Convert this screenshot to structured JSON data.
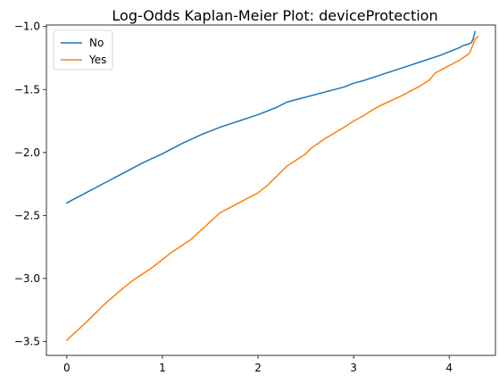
{
  "chart_data": {
    "type": "line",
    "title": "Log-Odds Kaplan-Meier Plot: deviceProtection",
    "xlabel": "",
    "ylabel": "",
    "xlim": [
      -0.2135,
      4.4835
    ],
    "ylim": [
      -3.6109,
      -0.9877
    ],
    "x_ticks": [
      0,
      1,
      2,
      3,
      4
    ],
    "x_tick_labels": [
      "0",
      "1",
      "2",
      "3",
      "4"
    ],
    "y_ticks": [
      -3.5,
      -3.0,
      -2.5,
      -2.0,
      -1.5,
      -1.0
    ],
    "y_tick_labels": [
      "−3.5",
      "−3.0",
      "−2.5",
      "−2.0",
      "−1.5",
      "−1.0"
    ],
    "grid": false,
    "legend": {
      "position": "top-left",
      "entries": [
        "No",
        "Yes"
      ]
    },
    "series": [
      {
        "name": "No",
        "color": "#1f77b4",
        "x": [
          0.0,
          0.2,
          0.4,
          0.6,
          0.8,
          1.0,
          1.2,
          1.4,
          1.6,
          1.8,
          2.0,
          2.2,
          2.3,
          2.5,
          2.7,
          2.9,
          3.0,
          3.1,
          3.3,
          3.5,
          3.7,
          3.9,
          4.0,
          4.1,
          4.15,
          4.2,
          4.23,
          4.25,
          4.27
        ],
        "y": [
          -2.4,
          -2.32,
          -2.24,
          -2.16,
          -2.08,
          -2.01,
          -1.93,
          -1.86,
          -1.8,
          -1.75,
          -1.7,
          -1.64,
          -1.6,
          -1.56,
          -1.52,
          -1.48,
          -1.45,
          -1.43,
          -1.38,
          -1.33,
          -1.28,
          -1.23,
          -1.2,
          -1.17,
          -1.15,
          -1.14,
          -1.13,
          -1.1,
          -1.04
        ]
      },
      {
        "name": "Yes",
        "color": "#ff7f0e",
        "x": [
          0.0,
          0.2,
          0.4,
          0.6,
          0.7,
          0.9,
          1.1,
          1.3,
          1.4,
          1.6,
          1.8,
          2.0,
          2.1,
          2.3,
          2.5,
          2.55,
          2.7,
          2.9,
          3.0,
          3.1,
          3.2,
          3.3,
          3.5,
          3.6,
          3.7,
          3.8,
          3.85,
          4.0,
          4.1,
          4.2,
          4.22,
          4.25,
          4.27,
          4.3
        ],
        "y": [
          -3.49,
          -3.35,
          -3.2,
          -3.07,
          -3.01,
          -2.91,
          -2.79,
          -2.69,
          -2.62,
          -2.48,
          -2.4,
          -2.32,
          -2.26,
          -2.11,
          -2.01,
          -1.97,
          -1.89,
          -1.8,
          -1.75,
          -1.71,
          -1.66,
          -1.62,
          -1.55,
          -1.51,
          -1.47,
          -1.42,
          -1.37,
          -1.31,
          -1.27,
          -1.22,
          -1.2,
          -1.14,
          -1.1,
          -1.08
        ]
      }
    ]
  }
}
